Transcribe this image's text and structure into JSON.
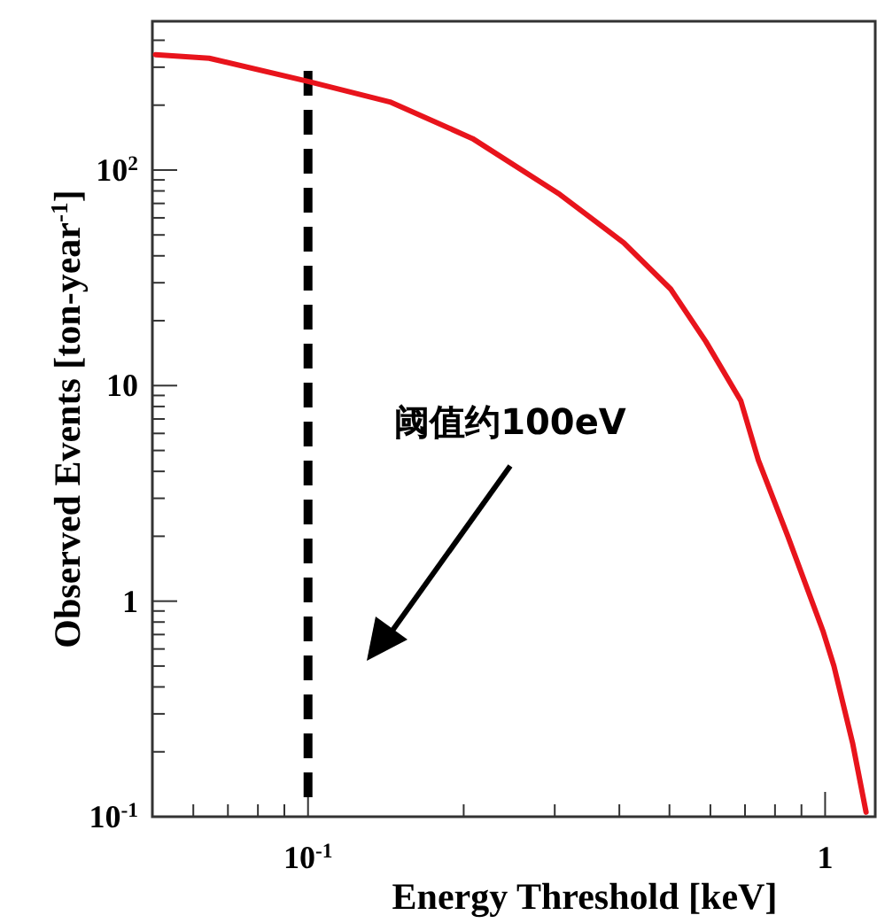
{
  "chart_data": {
    "type": "line",
    "xlabel": "Energy Threshold [keV]",
    "ylabel": "Observed Events [ton-year$^{-1}$]",
    "log": "xy",
    "xlim": [
      0.05,
      1.25
    ],
    "ylim": [
      0.1,
      490
    ],
    "xticks": [
      {
        "value": 0.1,
        "label": "10$^{-1}$"
      },
      1
    ],
    "yticks": [
      {
        "value": 0.1,
        "label": "10$^{-1}$"
      },
      1,
      10,
      {
        "value": 100,
        "label": "10$^{2}$"
      }
    ],
    "x": [
      0.0507,
      0.0644,
      0.1,
      0.144,
      0.208,
      0.307,
      0.408,
      0.503,
      0.588,
      0.687,
      0.743,
      0.847,
      0.99,
      1.04,
      1.13,
      1.2
    ],
    "series": [
      {
        "color": "#e8141c",
        "values": [
          343,
          330,
          258,
          207,
          140,
          77,
          46,
          28,
          16,
          8.5,
          4.5,
          2.0,
          0.73,
          0.5,
          0.22,
          0.105
        ]
      }
    ],
    "ref_lines": [
      {
        "axis": "x",
        "value": 0.1,
        "color": "#000000",
        "line_style": "dashed"
      }
    ],
    "annotations": [
      "阈值约100eV"
    ],
    "grid": false,
    "marker": "none",
    "line_style": "solid"
  }
}
